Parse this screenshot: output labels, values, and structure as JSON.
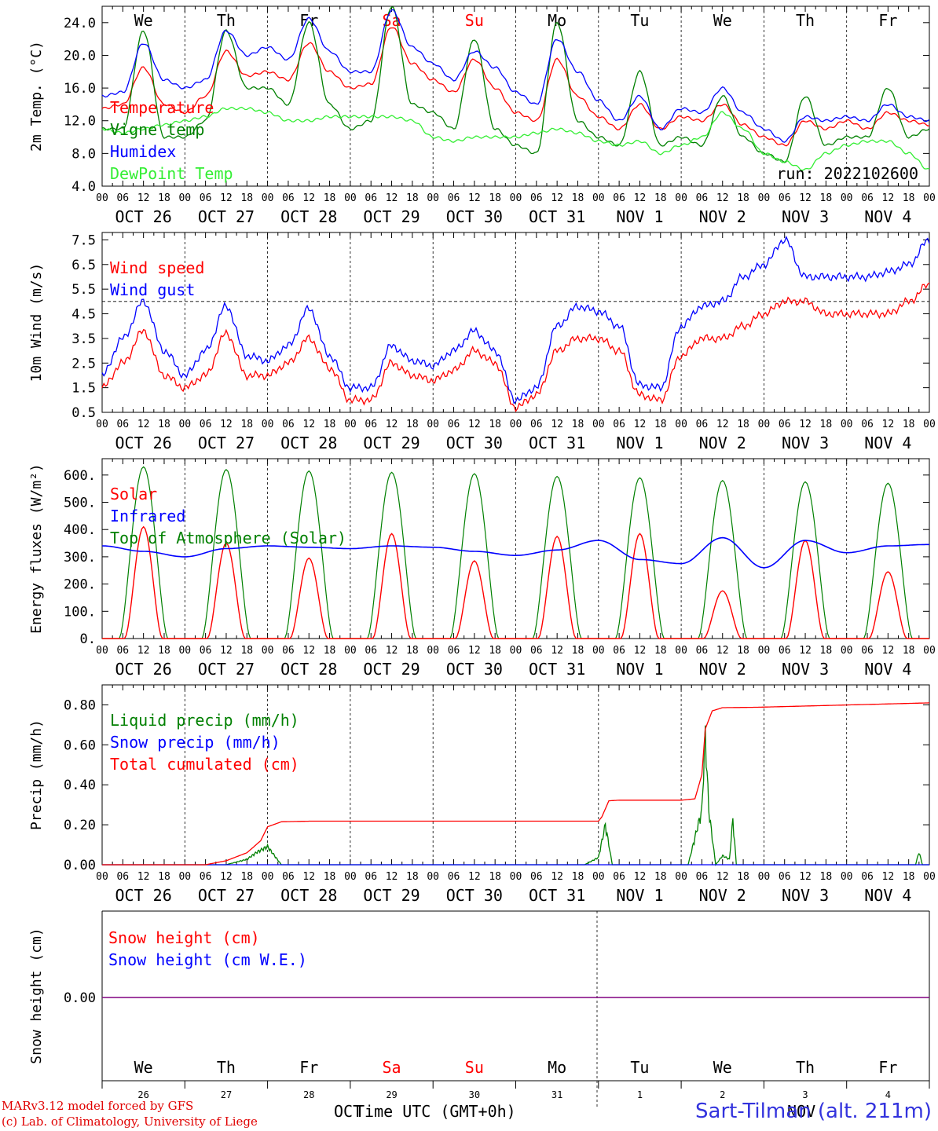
{
  "days": [
    "OCT 26",
    "OCT 27",
    "OCT 28",
    "OCT 29",
    "OCT 30",
    "OCT 31",
    "NOV  1",
    "NOV  2",
    "NOV  3",
    "NOV  4"
  ],
  "weekdays": [
    "We",
    "Th",
    "Fr",
    "Sa",
    "Su",
    "Mo",
    "Tu",
    "We",
    "Th",
    "Fr"
  ],
  "weekend_flags": [
    false,
    false,
    false,
    true,
    true,
    false,
    false,
    false,
    false,
    false
  ],
  "hour_ticks": [
    "00",
    "06",
    "12",
    "18"
  ],
  "hour_end": "00",
  "day_numbers": [
    "26",
    "27",
    "28",
    "29",
    "30",
    "31",
    "1",
    "2",
    "3",
    "4"
  ],
  "colors": {
    "red": "#ff0000",
    "blue": "#0000ff",
    "darkgreen": "#008000",
    "lightgreen": "#33ee33",
    "purple": "#800080",
    "weekend": "#ff0000"
  },
  "chart_data": [
    {
      "type": "line",
      "ylabel": "2m Temp. (°C)",
      "ylim": [
        4.0,
        26.0
      ],
      "yticks": [
        "4.0",
        "8.0",
        "12.0",
        "16.0",
        "20.0",
        "24.0"
      ],
      "ytick_values": [
        4,
        8,
        12,
        16,
        20,
        24
      ],
      "annotation": "run: 2022102600",
      "x_hours": [
        0,
        6,
        12,
        18,
        24,
        30,
        36,
        42,
        48,
        54,
        60,
        66,
        72,
        78,
        84,
        90,
        96,
        102,
        108,
        114,
        120,
        126,
        132,
        138,
        144,
        150,
        156,
        162,
        168,
        174,
        180,
        186,
        192,
        198,
        204,
        210,
        216,
        222,
        228,
        234,
        240
      ],
      "series": [
        {
          "name": "Temperature",
          "color": "red",
          "values": [
            13.5,
            14,
            18.5,
            14,
            13,
            15,
            20.5,
            17.5,
            18,
            17,
            21.5,
            18,
            16,
            16.5,
            23.5,
            19,
            17,
            15.5,
            19.5,
            16,
            13,
            12,
            19.5,
            15,
            12.5,
            11,
            14,
            11,
            12.5,
            12,
            14,
            11.5,
            10,
            9,
            12,
            11,
            12,
            11,
            13,
            12,
            11.5
          ]
        },
        {
          "name": "Vigne temp",
          "color": "darkgreen",
          "values": [
            11,
            11,
            23,
            10,
            10,
            12,
            23,
            16,
            16,
            14,
            24,
            14,
            11,
            12,
            26,
            14,
            13,
            11,
            22,
            11,
            9,
            8,
            24,
            12,
            10,
            9,
            18,
            9,
            10,
            9,
            15,
            10,
            8,
            7,
            15,
            9,
            10,
            10,
            16,
            10,
            11
          ]
        },
        {
          "name": "Humidex",
          "color": "blue",
          "values": [
            15,
            15.5,
            21.5,
            17,
            16,
            17,
            23,
            20,
            21,
            19.5,
            24.5,
            20.5,
            18,
            18,
            25.5,
            21,
            19,
            17,
            20.5,
            18.5,
            15.5,
            14,
            22,
            18,
            14.5,
            12,
            15,
            11,
            13.5,
            13,
            16,
            13,
            11,
            9.5,
            12.5,
            12,
            12.5,
            12,
            14,
            12.5,
            12
          ]
        },
        {
          "name": "DewPoint Temp",
          "color": "lightgreen",
          "values": [
            11,
            10.5,
            11,
            11.5,
            12,
            12.5,
            13.5,
            13.5,
            13,
            12,
            12,
            12.5,
            12.5,
            12.5,
            12.5,
            12,
            10,
            9.5,
            10,
            10,
            10,
            10.5,
            11,
            10.5,
            9.5,
            9,
            9.5,
            8,
            9,
            10,
            13,
            11,
            8,
            7,
            6,
            8,
            9,
            9.5,
            9.5,
            8,
            6
          ]
        }
      ]
    },
    {
      "type": "line",
      "ylabel": "10m Wind (m/s)",
      "ylim": [
        0.5,
        7.8
      ],
      "yticks": [
        "0.5",
        "1.5",
        "2.5",
        "3.5",
        "4.5",
        "5.5",
        "6.5",
        "7.5"
      ],
      "ytick_values": [
        0.5,
        1.5,
        2.5,
        3.5,
        4.5,
        5.5,
        6.5,
        7.5
      ],
      "reference_line": 5.0,
      "x_hours": [
        0,
        6,
        12,
        18,
        24,
        30,
        36,
        42,
        48,
        54,
        60,
        66,
        72,
        78,
        84,
        90,
        96,
        102,
        108,
        114,
        120,
        126,
        132,
        138,
        144,
        150,
        156,
        162,
        168,
        174,
        180,
        186,
        192,
        198,
        204,
        210,
        216,
        222,
        228,
        234,
        240
      ],
      "series": [
        {
          "name": "Wind speed",
          "color": "red",
          "values": [
            1.5,
            2.5,
            3.8,
            2,
            1.5,
            2,
            3.7,
            2,
            2,
            2.5,
            3.5,
            2.3,
            1,
            1,
            2.5,
            2,
            1.8,
            2.2,
            3,
            2.5,
            0.7,
            1.2,
            3,
            3.5,
            3.5,
            3,
            1.2,
            1,
            2.8,
            3.5,
            3.5,
            4,
            4.5,
            5,
            5,
            4.5,
            4.5,
            4.5,
            4.5,
            5,
            5.7
          ]
        },
        {
          "name": "Wind gust",
          "color": "blue",
          "values": [
            2,
            3.5,
            5,
            3,
            2,
            3,
            4.8,
            2.8,
            2.6,
            3.2,
            4.7,
            2.8,
            1.5,
            1.5,
            3.2,
            2.6,
            2.4,
            3,
            3.8,
            3,
            1,
            1.5,
            4,
            4.8,
            4.6,
            4,
            1.6,
            1.5,
            4,
            4.8,
            5,
            6,
            6.5,
            7.5,
            6,
            6,
            6,
            6,
            6.2,
            6.5,
            7.5
          ]
        }
      ]
    },
    {
      "type": "line",
      "ylabel": "Energy fluxes (W/m²)",
      "ylim": [
        0,
        660
      ],
      "yticks": [
        "0.",
        "100.",
        "200.",
        "300.",
        "400.",
        "500.",
        "600."
      ],
      "ytick_values": [
        0,
        100,
        200,
        300,
        400,
        500,
        600
      ],
      "solar_peaks": [
        410,
        350,
        295,
        385,
        285,
        375,
        385,
        175,
        360,
        245
      ],
      "toa_peaks": [
        630,
        620,
        615,
        610,
        605,
        595,
        590,
        580,
        575,
        570
      ],
      "series": [
        {
          "name": "Solar",
          "color": "red"
        },
        {
          "name": "Infrared",
          "color": "blue",
          "x_hours": [
            0,
            12,
            24,
            36,
            48,
            60,
            72,
            84,
            96,
            108,
            120,
            132,
            144,
            156,
            168,
            180,
            192,
            204,
            216,
            228,
            240
          ],
          "values": [
            340,
            320,
            300,
            330,
            340,
            335,
            330,
            340,
            335,
            320,
            305,
            325,
            360,
            290,
            275,
            370,
            260,
            360,
            315,
            340,
            345
          ]
        },
        {
          "name": "Top of Atmosphere (Solar)",
          "color": "darkgreen"
        }
      ]
    },
    {
      "type": "line",
      "ylabel": "Precip (mm/h)",
      "ylim": [
        0,
        0.9
      ],
      "yticks": [
        "0.00",
        "0.20",
        "0.40",
        "0.60",
        "0.80"
      ],
      "ytick_values": [
        0,
        0.2,
        0.4,
        0.6,
        0.8
      ],
      "series": [
        {
          "name": "Liquid precip (mm/h)",
          "color": "darkgreen",
          "x_hours": [
            0,
            36,
            42,
            45,
            48,
            52,
            60,
            140,
            144,
            146,
            148,
            170,
            174,
            175,
            176,
            178,
            180,
            182,
            183,
            184,
            236,
            237,
            238,
            240
          ],
          "values": [
            0,
            0,
            0.03,
            0.07,
            0.1,
            0,
            0,
            0,
            0.04,
            0.22,
            0,
            0,
            0.3,
            0.72,
            0.3,
            0,
            0.05,
            0.03,
            0.25,
            0,
            0,
            0.07,
            0,
            0
          ]
        },
        {
          "name": "Snow precip (mm/h)",
          "color": "blue",
          "x_hours": [
            0,
            240
          ],
          "values": [
            0,
            0
          ]
        },
        {
          "name": "Total cumulated (cm)",
          "color": "red",
          "x_hours": [
            0,
            30,
            36,
            42,
            46,
            48,
            52,
            60,
            144,
            145,
            147,
            150,
            168,
            172,
            174,
            175,
            177,
            180,
            190,
            240
          ],
          "values": [
            0,
            0,
            0.02,
            0.06,
            0.12,
            0.19,
            0.215,
            0.218,
            0.218,
            0.24,
            0.32,
            0.323,
            0.323,
            0.33,
            0.45,
            0.68,
            0.77,
            0.786,
            0.788,
            0.81
          ]
        }
      ]
    },
    {
      "type": "line",
      "ylabel": "Snow height (cm)",
      "yticks": [
        "0.00"
      ],
      "series": [
        {
          "name": "Snow height (cm)",
          "color": "red"
        },
        {
          "name": "Snow height (cm W.E.)",
          "color": "blue"
        }
      ]
    }
  ],
  "footer": {
    "model": "MARv3.12 model forced by GFS",
    "lab": "(c) Lab. of Climatology, University of Liege",
    "xlabel": "Time UTC (GMT+0h)",
    "oct": "OCT",
    "nov": "NOV",
    "station": "Sart-Tilman (alt. 211m)"
  }
}
